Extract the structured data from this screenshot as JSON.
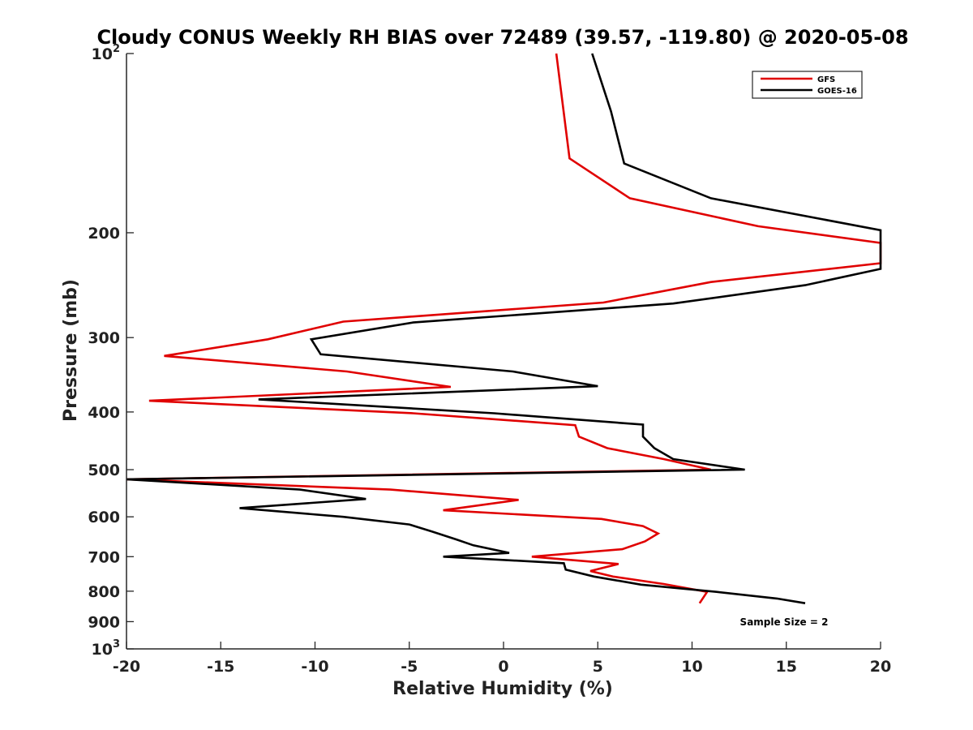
{
  "chart_data": {
    "type": "line",
    "title": "Cloudy CONUS Weekly RH BIAS over 72489 (39.57, -119.80) @ 2020-05-08",
    "xlabel": "Relative Humidity (%)",
    "ylabel": "Pressure (mb)",
    "xlim": [
      -20,
      20
    ],
    "ylim": [
      100,
      1000
    ],
    "y_scale": "log",
    "y_reversed": true,
    "grid": false,
    "legend_position": "top-right",
    "x_ticks": [
      -20,
      -15,
      -10,
      -5,
      0,
      5,
      10,
      15,
      20
    ],
    "x_tick_labels": [
      "-20",
      "-15",
      "-10",
      "-5",
      "0",
      "5",
      "10",
      "15",
      "20"
    ],
    "y_ticks": [
      100,
      200,
      300,
      400,
      500,
      600,
      700,
      800,
      900,
      1000
    ],
    "y_tick_labels": [
      {
        "base": "10",
        "exp": "2"
      },
      {
        "base": "200",
        "exp": ""
      },
      {
        "base": "300",
        "exp": ""
      },
      {
        "base": "400",
        "exp": ""
      },
      {
        "base": "500",
        "exp": ""
      },
      {
        "base": "600",
        "exp": ""
      },
      {
        "base": "700",
        "exp": ""
      },
      {
        "base": "800",
        "exp": ""
      },
      {
        "base": "900",
        "exp": ""
      },
      {
        "base": "10",
        "exp": "3"
      }
    ],
    "annotations": [
      {
        "text": "Sample Size = 2"
      }
    ],
    "series": [
      {
        "name": "GFS",
        "color": "#e00000",
        "points": [
          [
            2.8,
            100
          ],
          [
            3.5,
            150
          ],
          [
            6.7,
            175
          ],
          [
            13.5,
            195
          ],
          [
            20,
            208
          ],
          [
            20,
            225
          ],
          [
            11,
            242
          ],
          [
            5.3,
            262
          ],
          [
            -8.5,
            282
          ],
          [
            -12.5,
            302
          ],
          [
            -18,
            322
          ],
          [
            -8.3,
            342
          ],
          [
            -2.8,
            363
          ],
          [
            -18.8,
            383
          ],
          [
            -4.8,
            402
          ],
          [
            3.8,
            421
          ],
          [
            4.0,
            440
          ],
          [
            5.5,
            460
          ],
          [
            8.5,
            480
          ],
          [
            11.0,
            500
          ],
          [
            -20,
            519
          ],
          [
            -6,
            540
          ],
          [
            0.8,
            562
          ],
          [
            -3.2,
            585
          ],
          [
            5.2,
            605
          ],
          [
            7.4,
            622
          ],
          [
            8.2,
            640
          ],
          [
            7.5,
            660
          ],
          [
            6.3,
            680
          ],
          [
            1.5,
            700
          ],
          [
            6.1,
            720
          ],
          [
            4.6,
            740
          ],
          [
            5.8,
            756
          ],
          [
            8.5,
            778
          ],
          [
            10.8,
            802
          ],
          [
            10.4,
            838
          ]
        ]
      },
      {
        "name": "GOES-16",
        "color": "#000000",
        "points": [
          [
            4.7,
            100
          ],
          [
            5.7,
            125
          ],
          [
            6.4,
            153
          ],
          [
            11.0,
            175
          ],
          [
            20,
            198
          ],
          [
            20,
            230
          ],
          [
            16.0,
            245
          ],
          [
            9.0,
            263
          ],
          [
            -4.8,
            283
          ],
          [
            -10.2,
            302
          ],
          [
            -9.7,
            320
          ],
          [
            0.5,
            342
          ],
          [
            5.0,
            362
          ],
          [
            -13.0,
            381
          ],
          [
            -0.5,
            402
          ],
          [
            7.4,
            420
          ],
          [
            7.4,
            440
          ],
          [
            8.0,
            460
          ],
          [
            9.0,
            480
          ],
          [
            12.8,
            500
          ],
          [
            -20,
            519
          ],
          [
            -10.8,
            540
          ],
          [
            -7.3,
            560
          ],
          [
            -14,
            580
          ],
          [
            -8.5,
            600
          ],
          [
            -5.0,
            618
          ],
          [
            -3.8,
            635
          ],
          [
            -2.5,
            655
          ],
          [
            -1.6,
            670
          ],
          [
            0.3,
            690
          ],
          [
            -3.2,
            700
          ],
          [
            3.2,
            718
          ],
          [
            3.3,
            736
          ],
          [
            4.8,
            756
          ],
          [
            7.3,
            780
          ],
          [
            11.3,
            802
          ],
          [
            14.5,
            823
          ],
          [
            16.0,
            838
          ]
        ]
      }
    ]
  }
}
